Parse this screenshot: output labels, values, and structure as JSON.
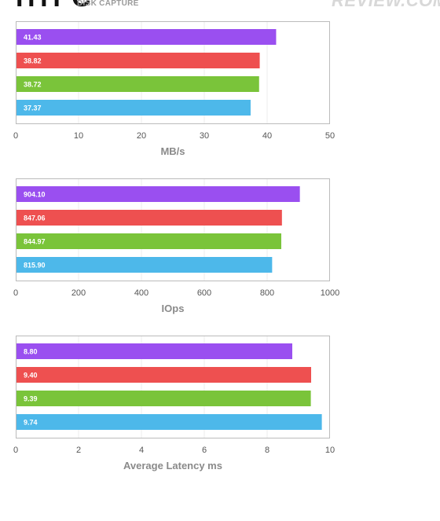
{
  "header": {
    "title": "HTPC",
    "subtitle": "DISK CAPTURE",
    "logo": "REVIEW.COM"
  },
  "colors": {
    "purple": "#9a4ff0",
    "red": "#ee5050",
    "green": "#7ac43a",
    "blue": "#4db8ea",
    "frame": "#bbbbbb",
    "grid": "#ececec"
  },
  "chart_data": [
    {
      "type": "bar",
      "orientation": "horizontal",
      "series_colors": [
        "#9a4ff0",
        "#ee5050",
        "#7ac43a",
        "#4db8ea"
      ],
      "values": [
        41.43,
        38.82,
        38.72,
        37.37
      ],
      "value_labels": [
        "41.43",
        "38.82",
        "38.72",
        "37.37"
      ],
      "xlim": [
        0,
        50
      ],
      "xticks": [
        "0",
        "10",
        "20",
        "30",
        "40",
        "50"
      ],
      "xlabel": "MB/s",
      "grid": true
    },
    {
      "type": "bar",
      "orientation": "horizontal",
      "series_colors": [
        "#9a4ff0",
        "#ee5050",
        "#7ac43a",
        "#4db8ea"
      ],
      "values": [
        904.1,
        847.06,
        844.97,
        815.9
      ],
      "value_labels": [
        "904.10",
        "847.06",
        "844.97",
        "815.90"
      ],
      "xlim": [
        0,
        1000
      ],
      "xticks": [
        "0",
        "200",
        "400",
        "600",
        "800",
        "1000"
      ],
      "xlabel": "IOps",
      "grid": true
    },
    {
      "type": "bar",
      "orientation": "horizontal",
      "series_colors": [
        "#9a4ff0",
        "#ee5050",
        "#7ac43a",
        "#4db8ea"
      ],
      "values": [
        8.8,
        9.4,
        9.39,
        9.74
      ],
      "value_labels": [
        "8.80",
        "9.40",
        "9.39",
        "9.74"
      ],
      "xlim": [
        0,
        10
      ],
      "xticks": [
        "0",
        "2",
        "4",
        "6",
        "8",
        "10"
      ],
      "xlabel": "Average Latency ms",
      "grid": true
    }
  ]
}
